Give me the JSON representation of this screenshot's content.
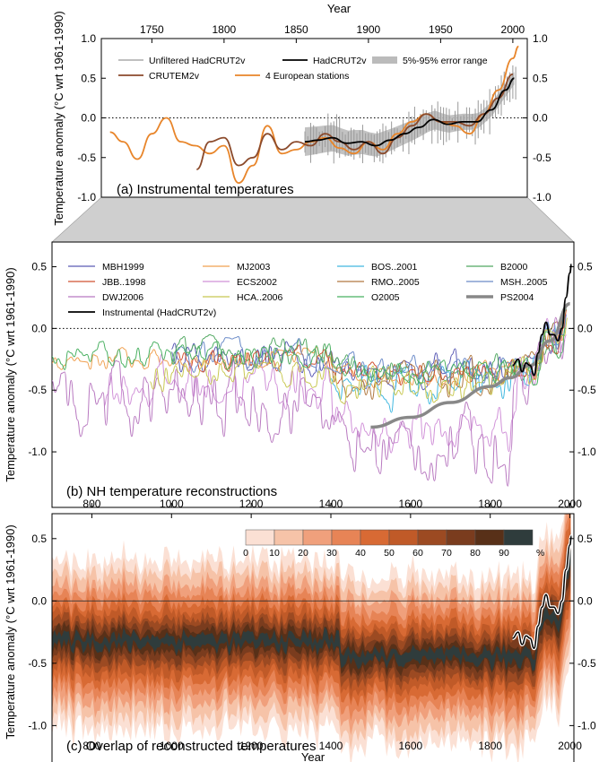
{
  "chart_data": [
    {
      "panel": "a",
      "type": "line",
      "title": "(a) Instrumental temperatures",
      "xlabel": "Year",
      "ylabel": "Temperature anomaly (°C wrt 1961-1990)",
      "xlim": [
        1715,
        2010
      ],
      "ylim": [
        -1.0,
        1.0
      ],
      "xticks": [
        1750,
        1800,
        1850,
        1900,
        1950,
        2000
      ],
      "yticks": [
        "1.0",
        "0.5",
        "0.0",
        "-0.5",
        "-1.0"
      ],
      "legend": [
        "Unfiltered HadCRUT2v",
        "HadCRUT2v",
        "5%-95% error range",
        "CRUTEM2v",
        "4 European stations"
      ],
      "colors": {
        "unfiltered": "#999999",
        "hadcrut": "#000000",
        "error": "#bbbbbb",
        "crutem": "#8b4a2b",
        "european": "#e8852a"
      },
      "series": [
        {
          "name": "4 European stations",
          "x": [
            1721,
            1730,
            1740,
            1750,
            1760,
            1770,
            1780,
            1790,
            1800,
            1810,
            1820,
            1830,
            1840,
            1850,
            1860,
            1870,
            1880,
            1890,
            1900,
            1910,
            1920,
            1930,
            1940,
            1950,
            1960,
            1970,
            1980,
            1990,
            2000,
            2004
          ],
          "y": [
            -0.18,
            -0.3,
            -0.52,
            -0.2,
            0.0,
            -0.3,
            -0.35,
            -0.45,
            -0.35,
            -0.82,
            -0.6,
            -0.1,
            -0.45,
            -0.4,
            -0.3,
            -0.25,
            -0.38,
            -0.45,
            -0.3,
            -0.4,
            -0.2,
            -0.05,
            0.05,
            -0.05,
            -0.1,
            -0.2,
            0.05,
            0.35,
            0.75,
            0.9
          ]
        },
        {
          "name": "CRUTEM2v",
          "x": [
            1781,
            1790,
            1800,
            1810,
            1820,
            1830,
            1840,
            1850,
            1860,
            1870,
            1880,
            1890,
            1900,
            1910,
            1920,
            1930,
            1940,
            1950,
            1960,
            1970,
            1980,
            1990,
            2000
          ],
          "y": [
            -0.65,
            -0.3,
            -0.25,
            -0.6,
            -0.5,
            -0.2,
            -0.4,
            -0.3,
            -0.35,
            -0.2,
            -0.3,
            -0.4,
            -0.3,
            -0.45,
            -0.25,
            -0.1,
            0.05,
            -0.05,
            -0.05,
            -0.1,
            0.05,
            0.25,
            0.55
          ]
        },
        {
          "name": "HadCRUT2v",
          "x": [
            1856,
            1865,
            1875,
            1885,
            1895,
            1905,
            1915,
            1925,
            1935,
            1945,
            1955,
            1965,
            1975,
            1985,
            1995,
            2001
          ],
          "y": [
            -0.3,
            -0.28,
            -0.25,
            -0.32,
            -0.3,
            -0.35,
            -0.28,
            -0.2,
            -0.12,
            -0.02,
            -0.08,
            -0.05,
            -0.05,
            0.1,
            0.35,
            0.5
          ]
        }
      ]
    },
    {
      "panel": "b",
      "type": "line",
      "title": "(b) NH temperature reconstructions",
      "ylabel": "Temperature anomaly (°C wrt 1961-1990)",
      "xlim": [
        700,
        2010
      ],
      "ylim": [
        -1.45,
        0.7
      ],
      "yticks": [
        "0.5",
        "0.0",
        "-0.5",
        "-1.0"
      ],
      "legend": [
        "MBH1999",
        "MJ2003",
        "BOS..2001",
        "B2000",
        "JBB..1998",
        "ECS2002",
        "RMO..2005",
        "MSH..2005",
        "DWJ2006",
        "HCA..2006",
        "O2005",
        "PS2004",
        "Instrumental (HadCRUT2v)"
      ],
      "series_colors": [
        "#5b5bb5",
        "#f0a050",
        "#40b8e0",
        "#50a860",
        "#d05030",
        "#d090d8",
        "#b07840",
        "#6a8ac8",
        "#b878c0",
        "#c8c850",
        "#48b060",
        "#888888",
        "#000000"
      ],
      "series": [
        {
          "name": "PS2004",
          "x": [
            1500,
            1600,
            1700,
            1800,
            1850,
            1900,
            1950,
            2000
          ],
          "y": [
            -0.8,
            -0.72,
            -0.6,
            -0.47,
            -0.4,
            -0.3,
            -0.1,
            0.2
          ]
        },
        {
          "name": "Instrumental (HadCRUT2v)",
          "x": [
            1856,
            1870,
            1880,
            1890,
            1900,
            1910,
            1920,
            1930,
            1940,
            1950,
            1960,
            1970,
            1980,
            1990,
            2000,
            2004
          ],
          "y": [
            -0.3,
            -0.25,
            -0.35,
            -0.28,
            -0.3,
            -0.38,
            -0.2,
            -0.05,
            0.05,
            -0.05,
            -0.05,
            -0.1,
            0.0,
            0.25,
            0.45,
            0.52
          ]
        }
      ]
    },
    {
      "panel": "c",
      "type": "area",
      "title": "(c) Overlap of reconstructed temperatures",
      "xlabel": "Year",
      "ylabel": "Temperature anomaly (°C wrt 1961-1990)",
      "xlim": [
        700,
        2010
      ],
      "ylim": [
        -1.4,
        0.7
      ],
      "xticks": [
        800,
        1000,
        1200,
        1400,
        1600,
        1800,
        2000
      ],
      "yticks": [
        "0.5",
        "0.0",
        "-0.5",
        "-1.0"
      ],
      "colorbar_ticks": [
        "0",
        "10",
        "20",
        "30",
        "40",
        "50",
        "60",
        "70",
        "80",
        "90",
        "%"
      ],
      "colorbar_colors": [
        "#fbe0d4",
        "#f6c3a8",
        "#f0a07c",
        "#e78456",
        "#d86a34",
        "#c05a28",
        "#9c4a22",
        "#7a3c1e",
        "#583018",
        "#2f3c3c"
      ],
      "series": [
        {
          "name": "Instrumental",
          "x": [
            1856,
            1870,
            1880,
            1890,
            1900,
            1910,
            1920,
            1930,
            1940,
            1950,
            1960,
            1970,
            1980,
            1990,
            2000,
            2004
          ],
          "y": [
            -0.3,
            -0.25,
            -0.35,
            -0.28,
            -0.3,
            -0.38,
            -0.2,
            -0.05,
            0.05,
            -0.05,
            -0.05,
            -0.1,
            0.0,
            0.25,
            0.45,
            0.52
          ]
        }
      ]
    }
  ]
}
